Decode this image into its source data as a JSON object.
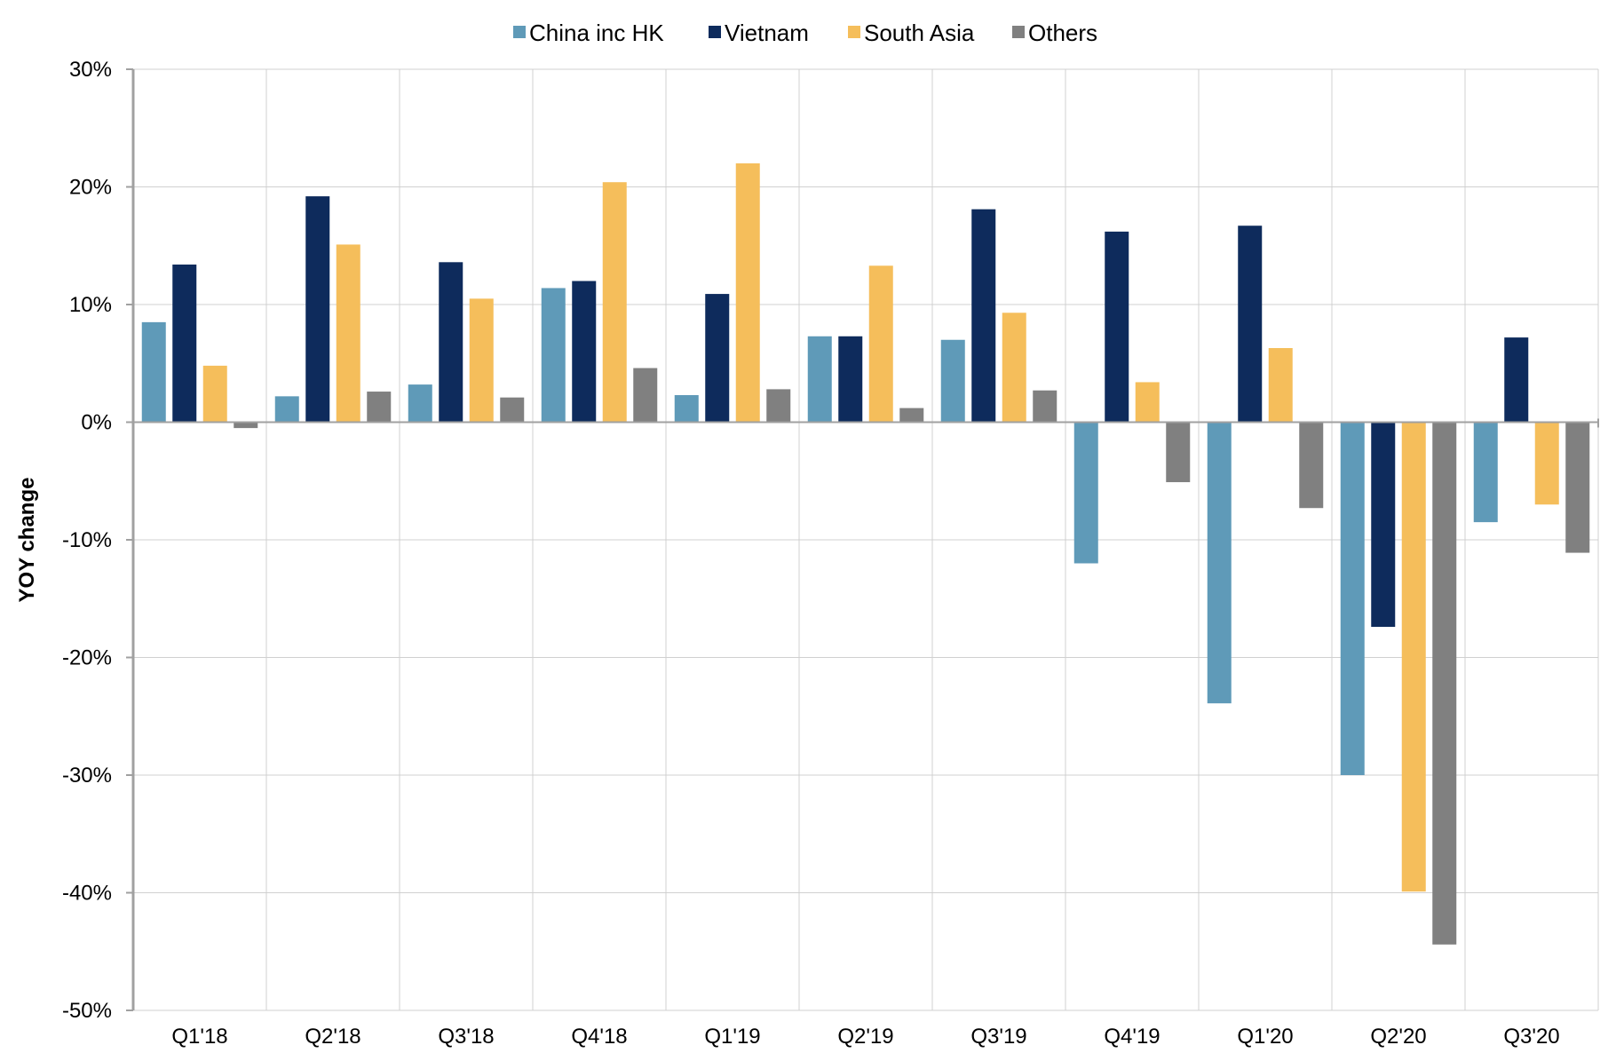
{
  "chart_data": {
    "type": "bar",
    "title": "",
    "xlabel": "",
    "ylabel": "YOY change",
    "ylim": [
      -50,
      30
    ],
    "yticks": [
      30,
      20,
      10,
      0,
      -10,
      -20,
      -30,
      -40,
      -50
    ],
    "ytick_labels": [
      "30%",
      "20%",
      "10%",
      "0%",
      "-10%",
      "-20%",
      "-30%",
      "-40%",
      "-50%"
    ],
    "grid": true,
    "legend_position": "top-center",
    "categories": [
      "Q1'18",
      "Q2'18",
      "Q3'18",
      "Q4'18",
      "Q1'19",
      "Q2'19",
      "Q3'19",
      "Q4'19",
      "Q1'20",
      "Q2'20",
      "Q3'20"
    ],
    "series": [
      {
        "name": "China inc HK",
        "color": "#5f9ab8",
        "values": [
          8.5,
          2.2,
          3.2,
          11.4,
          2.3,
          7.3,
          7.0,
          -12.0,
          -23.9,
          -30.0,
          -8.5
        ]
      },
      {
        "name": "Vietnam",
        "color": "#0e2b5c",
        "values": [
          13.4,
          19.2,
          13.6,
          12.0,
          10.9,
          7.3,
          18.1,
          16.2,
          16.7,
          -17.4,
          7.2
        ]
      },
      {
        "name": "South Asia",
        "color": "#f5be5b",
        "values": [
          4.8,
          15.1,
          10.5,
          20.4,
          22.0,
          13.3,
          9.3,
          3.4,
          6.3,
          -39.9,
          -7.0
        ]
      },
      {
        "name": "Others",
        "color": "#808080",
        "values": [
          -0.5,
          2.6,
          2.1,
          4.6,
          2.8,
          1.2,
          2.7,
          -5.1,
          -7.3,
          -44.4,
          -11.1
        ]
      }
    ]
  }
}
